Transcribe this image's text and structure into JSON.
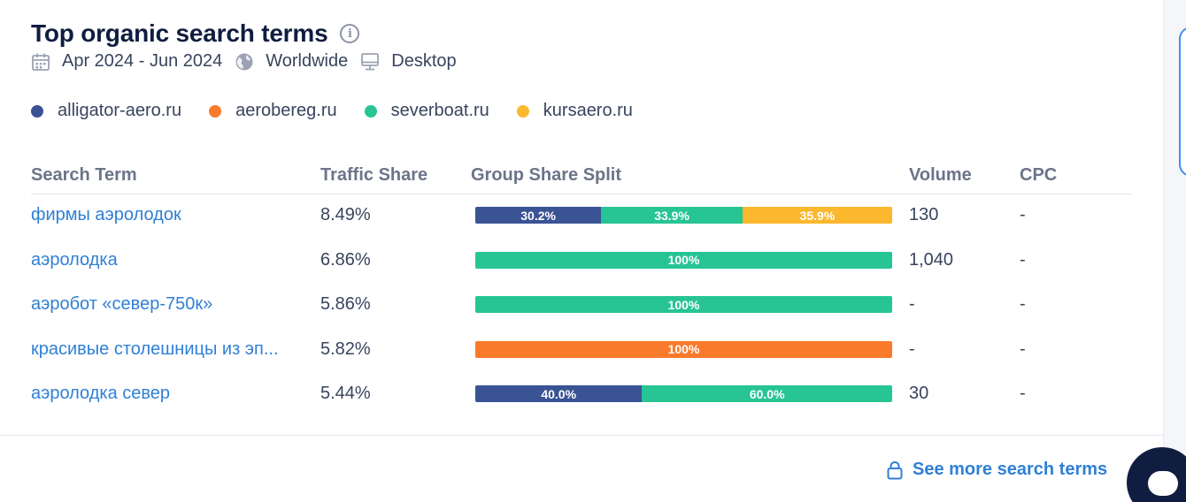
{
  "header": {
    "title": "Top organic search terms",
    "info_icon": "info-icon",
    "date_range": "Apr 2024 - Jun 2024",
    "region": "Worldwide",
    "device": "Desktop"
  },
  "legend": [
    {
      "label": "alligator-aero.ru",
      "color": "#3a5394"
    },
    {
      "label": "aerobereg.ru",
      "color": "#fa7a2b"
    },
    {
      "label": "severboat.ru",
      "color": "#27c494"
    },
    {
      "label": "kursaero.ru",
      "color": "#fbb72d"
    }
  ],
  "table": {
    "headers": {
      "term": "Search Term",
      "share": "Traffic Share",
      "split": "Group Share Split",
      "volume": "Volume",
      "cpc": "CPC"
    },
    "rows": [
      {
        "term": "фирмы аэролодок",
        "share": "8.49%",
        "segments": [
          {
            "label": "30.2%",
            "value": 30.2,
            "color": "#3a5394"
          },
          {
            "label": "33.9%",
            "value": 33.9,
            "color": "#27c494"
          },
          {
            "label": "35.9%",
            "value": 35.9,
            "color": "#fbb72d"
          }
        ],
        "volume": "130",
        "cpc": "-"
      },
      {
        "term": "аэролодка",
        "share": "6.86%",
        "segments": [
          {
            "label": "100%",
            "value": 100,
            "color": "#27c494"
          }
        ],
        "volume": "1,040",
        "cpc": "-"
      },
      {
        "term": "аэробот «север-750к»",
        "share": "5.86%",
        "segments": [
          {
            "label": "100%",
            "value": 100,
            "color": "#27c494"
          }
        ],
        "volume": "-",
        "cpc": "-"
      },
      {
        "term": "красивые столешницы из эп...",
        "share": "5.82%",
        "segments": [
          {
            "label": "100%",
            "value": 100,
            "color": "#fa7a2b"
          }
        ],
        "volume": "-",
        "cpc": "-"
      },
      {
        "term": "аэролодка север",
        "share": "5.44%",
        "segments": [
          {
            "label": "40.0%",
            "value": 40.0,
            "color": "#3a5394"
          },
          {
            "label": "60.0%",
            "value": 60.0,
            "color": "#27c494"
          }
        ],
        "volume": "30",
        "cpc": "-"
      }
    ]
  },
  "footer": {
    "see_more": "See more search terms",
    "lock_icon": "lock-icon"
  },
  "chat": {
    "icon": "chat-icon"
  }
}
